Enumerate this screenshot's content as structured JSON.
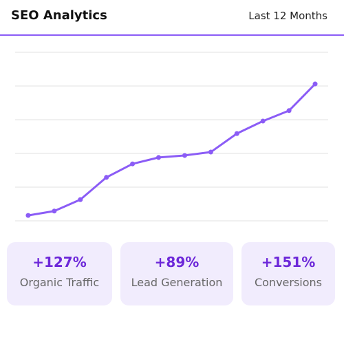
{
  "header": {
    "title": "SEO Analytics",
    "range": "Last 12 Months"
  },
  "chart_data": {
    "type": "line",
    "categories": [
      null,
      null,
      null,
      null,
      null,
      null,
      null,
      null,
      null,
      null,
      null,
      null
    ],
    "values": [
      0.16,
      0.29,
      0.63,
      1.29,
      1.69,
      1.88,
      1.94,
      2.04,
      2.59,
      2.96,
      3.27,
      4.06
    ],
    "color": "#8b5cf6",
    "ylim": [
      0,
      5
    ],
    "yticks": [
      0,
      1,
      2,
      3,
      4,
      5
    ],
    "grid": true
  },
  "stats": [
    {
      "value": "+127%",
      "label": "Organic Traffic"
    },
    {
      "value": "+89%",
      "label": "Lead Generation"
    },
    {
      "value": "+151%",
      "label": "Conversions"
    }
  ]
}
